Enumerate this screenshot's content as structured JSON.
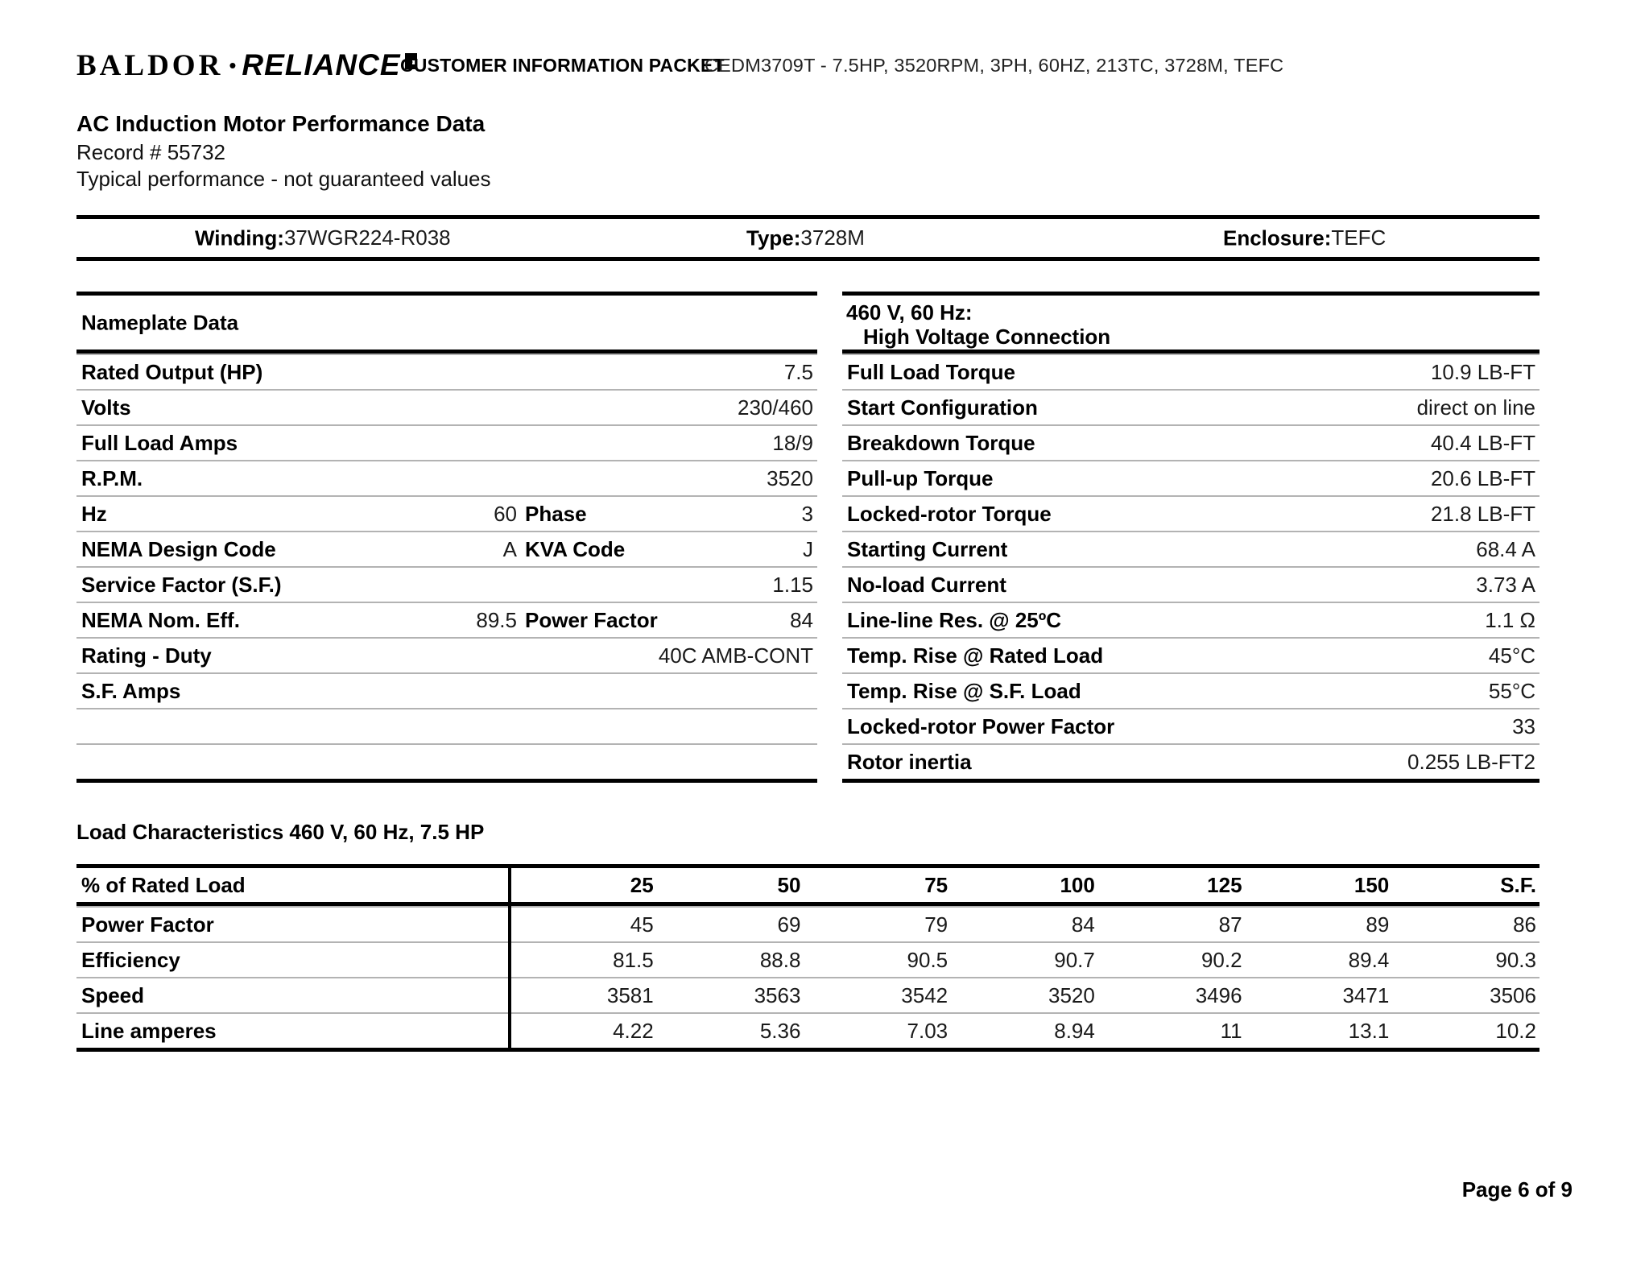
{
  "header": {
    "logo": {
      "baldor": "BALDOR",
      "separator": "•",
      "reliance": "RELIANCE"
    },
    "packet_title": "CUSTOMER INFORMATION PACKET",
    "model_line": "CEDM3709T - 7.5HP, 3520RPM, 3PH, 60HZ, 213TC, 3728M, TEFC"
  },
  "title_block": {
    "title": "AC Induction Motor Performance Data",
    "record": "Record # 55732",
    "note": "Typical performance - not guaranteed values"
  },
  "winding_bar": {
    "winding_label": "Winding:",
    "winding_value": "37WGR224-R038",
    "type_label": "Type:",
    "type_value": "3728M",
    "enclosure_label": "Enclosure:",
    "enclosure_value": "TEFC"
  },
  "nameplate": {
    "title": "Nameplate Data",
    "rows": [
      {
        "label": "Rated Output (HP)",
        "value": "7.5"
      },
      {
        "label": "Volts",
        "value": "230/460"
      },
      {
        "label": "Full Load Amps",
        "value": "18/9"
      },
      {
        "label": "R.P.M.",
        "value": "3520"
      },
      {
        "label": "Hz",
        "mid": "60",
        "label2": "Phase",
        "value": "3"
      },
      {
        "label": "NEMA Design Code",
        "mid": "A",
        "label2": "KVA Code",
        "value": "J"
      },
      {
        "label": "Service Factor (S.F.)",
        "value": "1.15"
      },
      {
        "label": "NEMA Nom. Eff.",
        "mid": "89.5",
        "label2": "Power Factor",
        "value": "84"
      },
      {
        "label": "Rating - Duty",
        "value": "40C AMB-CONT"
      },
      {
        "label": "S.F. Amps",
        "value": ""
      },
      {
        "label": "",
        "value": ""
      },
      {
        "label": "",
        "value": ""
      }
    ]
  },
  "high_voltage": {
    "title_line1": "460 V, 60 Hz:",
    "title_line2": "High Voltage Connection",
    "rows": [
      {
        "label": "Full Load Torque",
        "value": "10.9 LB-FT"
      },
      {
        "label": "Start Configuration",
        "value": "direct on line"
      },
      {
        "label": "Breakdown Torque",
        "value": "40.4 LB-FT"
      },
      {
        "label": "Pull-up Torque",
        "value": "20.6 LB-FT"
      },
      {
        "label": "Locked-rotor Torque",
        "value": "21.8 LB-FT"
      },
      {
        "label": "Starting Current",
        "value": "68.4 A"
      },
      {
        "label": "No-load Current",
        "value": "3.73 A"
      },
      {
        "label": "Line-line Res. @ 25ºC",
        "value": "1.1 Ω"
      },
      {
        "label": "Temp. Rise @ Rated Load",
        "value": "45°C"
      },
      {
        "label": "Temp. Rise @ S.F. Load",
        "value": "55°C"
      },
      {
        "label": "Locked-rotor Power Factor",
        "value": "33"
      },
      {
        "label": "Rotor inertia",
        "value": "0.255 LB-FT2"
      }
    ]
  },
  "load_characteristics": {
    "title": "Load Characteristics 460 V, 60 Hz, 7.5 HP",
    "header_label": "% of Rated Load",
    "columns": [
      "25",
      "50",
      "75",
      "100",
      "125",
      "150",
      "S.F."
    ],
    "rows": [
      {
        "label": "Power Factor",
        "values": [
          "45",
          "69",
          "79",
          "84",
          "87",
          "89",
          "86"
        ]
      },
      {
        "label": "Efficiency",
        "values": [
          "81.5",
          "88.8",
          "90.5",
          "90.7",
          "90.2",
          "89.4",
          "90.3"
        ]
      },
      {
        "label": "Speed",
        "values": [
          "3581",
          "3563",
          "3542",
          "3520",
          "3496",
          "3471",
          "3506"
        ]
      },
      {
        "label": "Line amperes",
        "values": [
          "4.22",
          "5.36",
          "7.03",
          "8.94",
          "11",
          "13.1",
          "10.2"
        ]
      }
    ]
  },
  "footer": {
    "page": "Page 6 of 9"
  }
}
